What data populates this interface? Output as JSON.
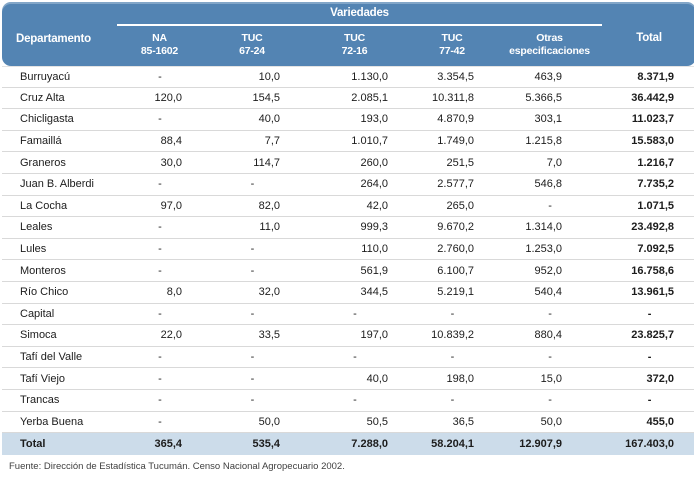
{
  "table": {
    "header": {
      "department_label": "Departamento",
      "group_label": "Variedades",
      "total_label": "Total",
      "columns": [
        {
          "id": "na-85-1602",
          "line1": "NA",
          "line2": "85-1602"
        },
        {
          "id": "tuc-67-24",
          "line1": "TUC",
          "line2": "67-24"
        },
        {
          "id": "tuc-72-16",
          "line1": "TUC",
          "line2": "72-16"
        },
        {
          "id": "tuc-77-42",
          "line1": "TUC",
          "line2": "77-42"
        },
        {
          "id": "otras-especificaciones",
          "line1": "Otras",
          "line2": "especificaciones"
        }
      ]
    },
    "rows": [
      {
        "department": "Burruyacú",
        "values": [
          "-",
          "10,0",
          "1.130,0",
          "3.354,5",
          "463,9"
        ],
        "total": "8.371,9"
      },
      {
        "department": "Cruz Alta",
        "values": [
          "120,0",
          "154,5",
          "2.085,1",
          "10.311,8",
          "5.366,5"
        ],
        "total": "36.442,9"
      },
      {
        "department": "Chicligasta",
        "values": [
          "-",
          "40,0",
          "193,0",
          "4.870,9",
          "303,1"
        ],
        "total": "11.023,7"
      },
      {
        "department": "Famaillá",
        "values": [
          "88,4",
          "7,7",
          "1.010,7",
          "1.749,0",
          "1.215,8"
        ],
        "total": "15.583,0"
      },
      {
        "department": "Graneros",
        "values": [
          "30,0",
          "114,7",
          "260,0",
          "251,5",
          "7,0"
        ],
        "total": "1.216,7"
      },
      {
        "department": "Juan B. Alberdi",
        "values": [
          "-",
          "-",
          "264,0",
          "2.577,7",
          "546,8"
        ],
        "total": "7.735,2"
      },
      {
        "department": "La Cocha",
        "values": [
          "97,0",
          "82,0",
          "42,0",
          "265,0",
          "-"
        ],
        "total": "1.071,5"
      },
      {
        "department": "Leales",
        "values": [
          "-",
          "11,0",
          "999,3",
          "9.670,2",
          "1.314,0"
        ],
        "total": "23.492,8"
      },
      {
        "department": "Lules",
        "values": [
          "-",
          "-",
          "110,0",
          "2.760,0",
          "1.253,0"
        ],
        "total": "7.092,5"
      },
      {
        "department": "Monteros",
        "values": [
          "-",
          "-",
          "561,9",
          "6.100,7",
          "952,0"
        ],
        "total": "16.758,6"
      },
      {
        "department": "Río Chico",
        "values": [
          "8,0",
          "32,0",
          "344,5",
          "5.219,1",
          "540,4"
        ],
        "total": "13.961,5"
      },
      {
        "department": "Capital",
        "values": [
          "-",
          "-",
          "-",
          "-",
          "-"
        ],
        "total": "-"
      },
      {
        "department": "Simoca",
        "values": [
          "22,0",
          "33,5",
          "197,0",
          "10.839,2",
          "880,4"
        ],
        "total": "23.825,7"
      },
      {
        "department": "Tafí del Valle",
        "values": [
          "-",
          "-",
          "-",
          "-",
          "-"
        ],
        "total": "-"
      },
      {
        "department": "Tafí Viejo",
        "values": [
          "-",
          "-",
          "40,0",
          "198,0",
          "15,0"
        ],
        "total": "372,0"
      },
      {
        "department": "Trancas",
        "values": [
          "-",
          "-",
          "-",
          "-",
          "-"
        ],
        "total": "-"
      },
      {
        "department": "Yerba Buena",
        "values": [
          "-",
          "50,0",
          "50,5",
          "36,5",
          "50,0"
        ],
        "total": "455,0"
      }
    ],
    "total_row": {
      "label": "Total",
      "values": [
        "365,4",
        "535,4",
        "7.288,0",
        "58.204,1",
        "12.907,9"
      ],
      "total": "167.403,0"
    },
    "source": "Fuente: Dirección de Estadística Tucumán. Censo Nacional Agropecuario 2002."
  },
  "colors": {
    "header_bg": "#5384b3",
    "header_text": "#ffffff",
    "total_row_bg": "#ccdcea",
    "separator": "#d9d9d9",
    "body_text": "#1c1c1c",
    "source_text": "#3f3f3f"
  }
}
